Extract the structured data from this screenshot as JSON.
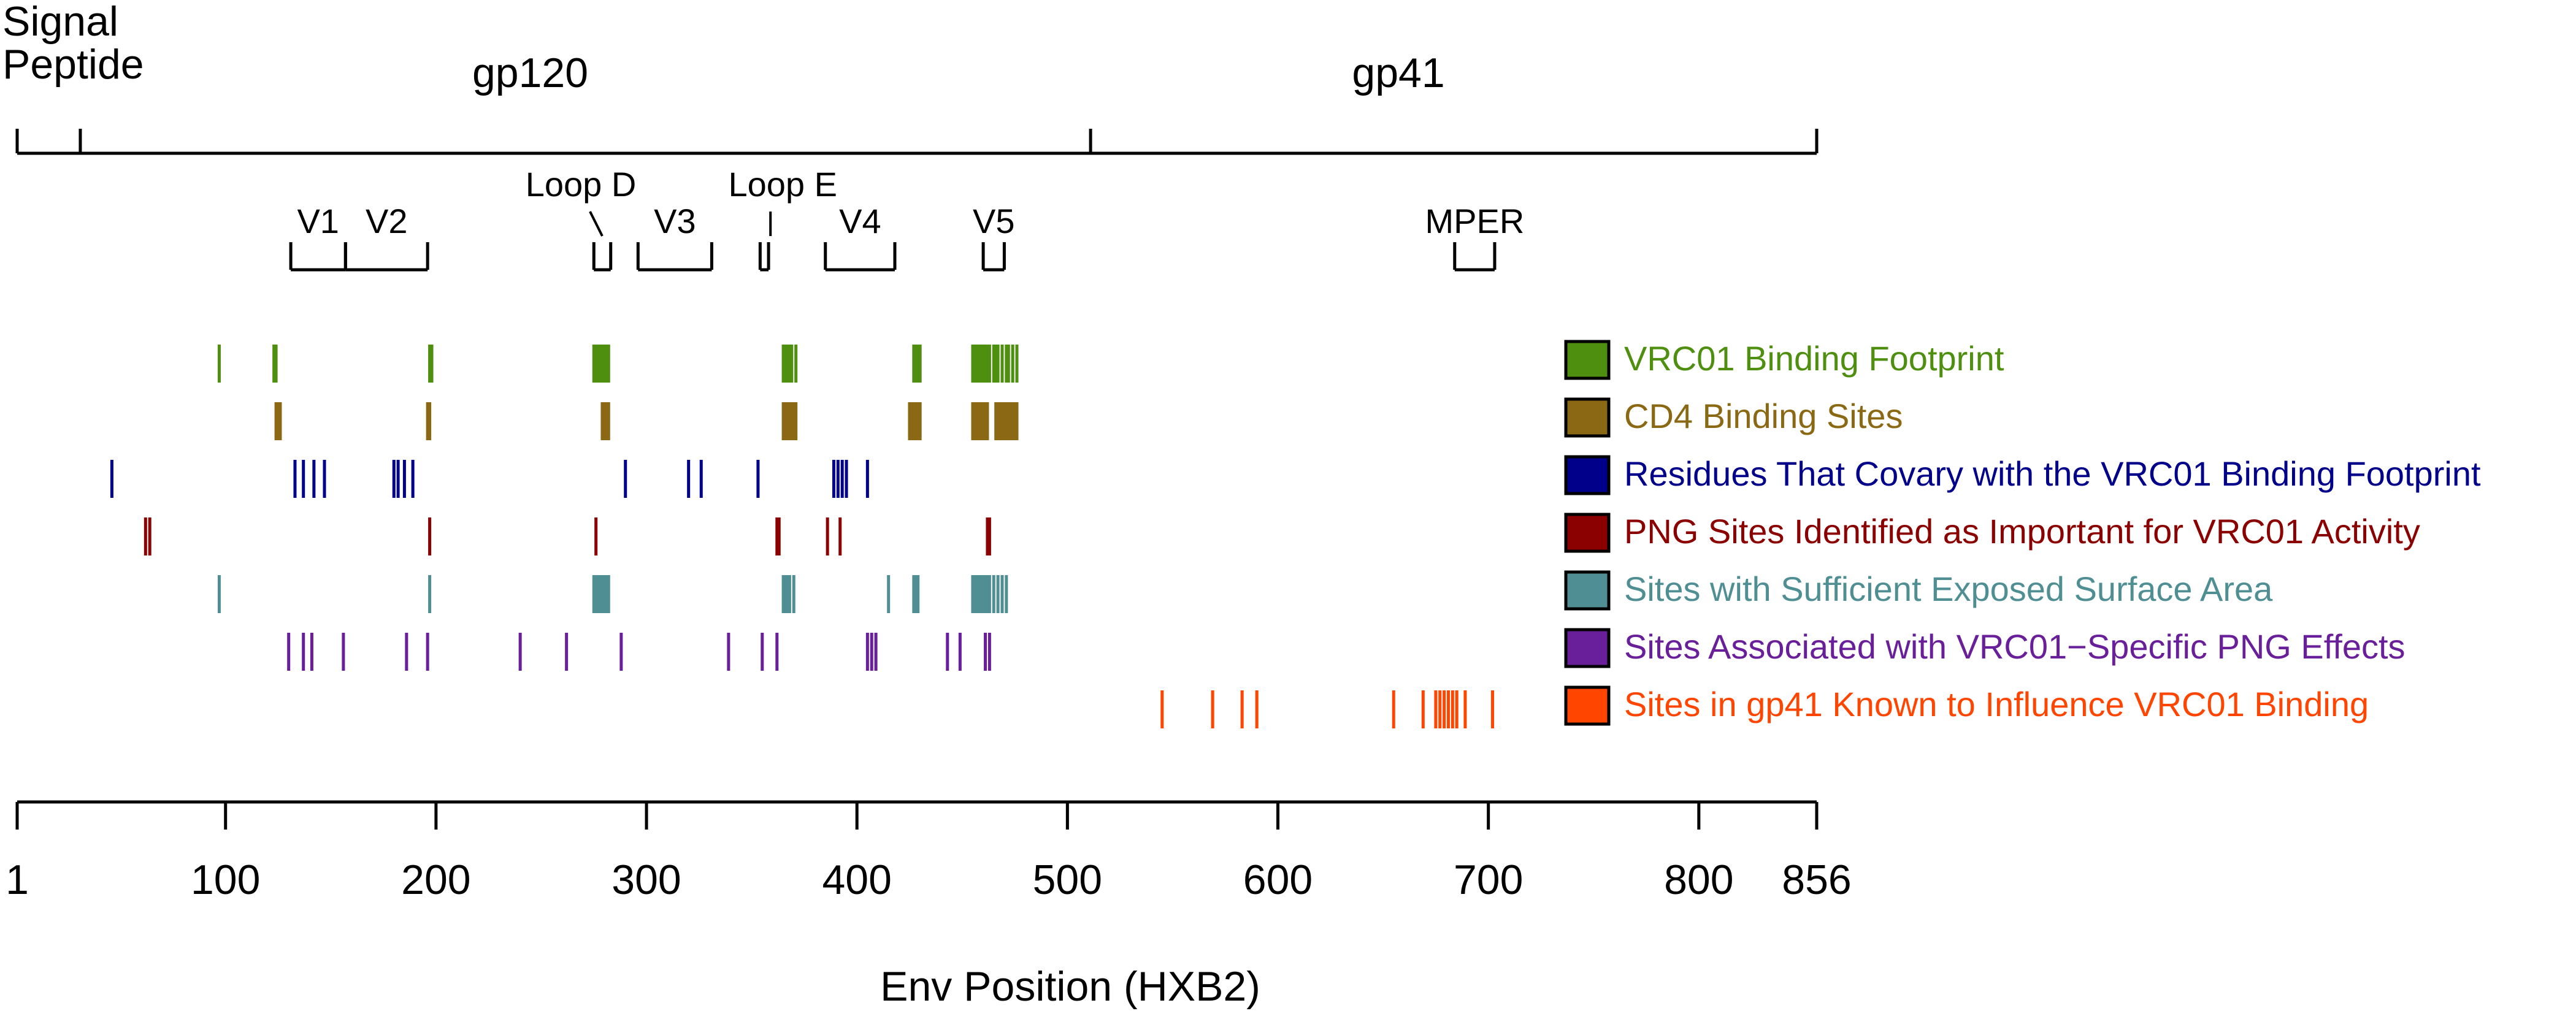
{
  "chart_data": {
    "type": "tick-track",
    "xlabel": "Env Position (HXB2)",
    "x_range": [
      1,
      856
    ],
    "x_ticks": [
      1,
      100,
      200,
      300,
      400,
      500,
      600,
      700,
      800,
      856
    ],
    "regions": [
      {
        "label": "Signal Peptide",
        "lines": [
          "Signal",
          "Peptide"
        ],
        "start": 1,
        "end": 31
      },
      {
        "label": "gp120",
        "start": 31,
        "end": 511
      },
      {
        "label": "gp41",
        "start": 511,
        "end": 856
      }
    ],
    "subregions": [
      {
        "label": "V1",
        "start": 131,
        "end": 157
      },
      {
        "label": "V2",
        "start": 157,
        "end": 196
      },
      {
        "label": "Loop D",
        "start": 275,
        "end": 283
      },
      {
        "label": "V3",
        "start": 296,
        "end": 331
      },
      {
        "label": "Loop E",
        "start": 354,
        "end": 358
      },
      {
        "label": "V4",
        "start": 385,
        "end": 418
      },
      {
        "label": "V5",
        "start": 460,
        "end": 470
      },
      {
        "label": "MPER",
        "start": 684,
        "end": 703
      }
    ],
    "series": [
      {
        "name": "VRC01 Binding Footprint",
        "color": "#4e8f0f",
        "positions": [
          97,
          123,
          124,
          197,
          198,
          275,
          276,
          277,
          278,
          279,
          280,
          281,
          282,
          365,
          366,
          367,
          368,
          369,
          371,
          427,
          428,
          429,
          430,
          455,
          456,
          457,
          458,
          459,
          460,
          461,
          462,
          463,
          465,
          466,
          467,
          469,
          471,
          472,
          474,
          476
        ]
      },
      {
        "name": "CD4 Binding Sites",
        "color": "#8b6914",
        "positions": [
          124,
          125,
          126,
          196,
          197,
          279,
          280,
          281,
          282,
          365,
          366,
          367,
          368,
          369,
          370,
          371,
          425,
          426,
          427,
          428,
          429,
          430,
          455,
          456,
          457,
          458,
          459,
          460,
          461,
          462,
          466,
          467,
          468,
          469,
          470,
          471,
          472,
          473,
          474,
          475,
          476
        ]
      },
      {
        "name": "Residues That Covary with the VRC01 Binding Footprint",
        "color": "#00008b",
        "positions": [
          46,
          133,
          137,
          142,
          147,
          180,
          182,
          185,
          189,
          290,
          320,
          326,
          353,
          389,
          391,
          393,
          395,
          405
        ]
      },
      {
        "name": "PNG Sites Identified as Important for VRC01 Activity",
        "color": "#8b0000",
        "positions": [
          62,
          64,
          197,
          276,
          362,
          363,
          386,
          392,
          462,
          463
        ]
      },
      {
        "name": "Sites with Sufficient Exposed Surface Area",
        "color": "#4f8f93",
        "positions": [
          97,
          197,
          275,
          276,
          277,
          278,
          279,
          280,
          281,
          282,
          365,
          366,
          367,
          368,
          370,
          415,
          427,
          428,
          429,
          455,
          456,
          457,
          458,
          459,
          460,
          461,
          462,
          463,
          465,
          467,
          469,
          471
        ]
      },
      {
        "name": "Sites Associated with VRC01−Specific PNG Effects",
        "color": "#6a1f9a",
        "positions": [
          130,
          137,
          141,
          156,
          186,
          196,
          240,
          262,
          288,
          339,
          355,
          362,
          405,
          407,
          409,
          443,
          449,
          461,
          463
        ]
      },
      {
        "name": "Sites in gp41 Known to Influence VRC01 Binding",
        "color": "#ff4500",
        "positions": [
          545,
          569,
          583,
          590,
          655,
          669,
          675,
          677,
          679,
          681,
          683,
          685,
          689,
          702
        ]
      }
    ]
  }
}
